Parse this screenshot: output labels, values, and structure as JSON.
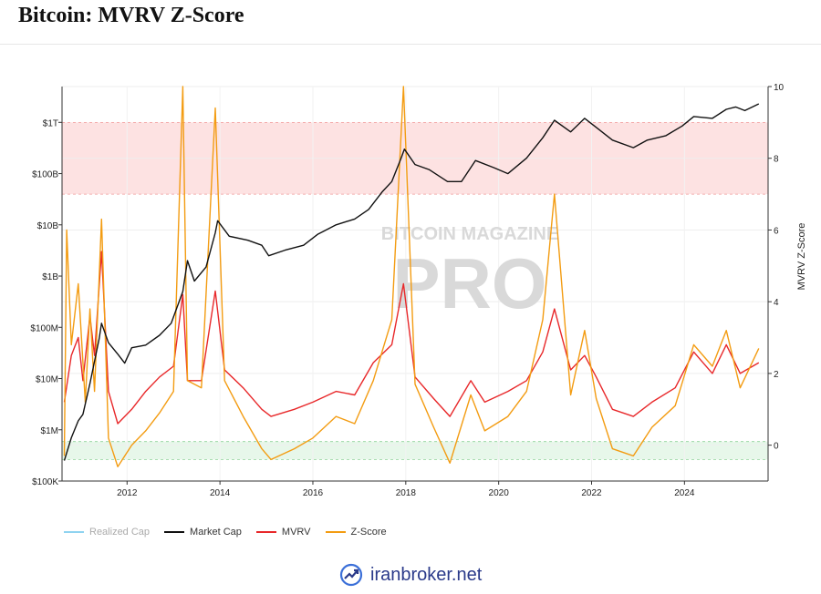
{
  "page": {
    "title": "Bitcoin: MVRV Z-Score"
  },
  "brand": {
    "text": "iranbroker.net",
    "icon": "trend-chart-icon"
  },
  "watermark": {
    "line1": "BITCOIN MAGAZINE",
    "line2": "PRO"
  },
  "colors": {
    "realized_cap": "#8fd3f0",
    "market_cap": "#111111",
    "mvrv": "#e8282a",
    "zscore": "#f39c12",
    "top_band": "#fde2e2",
    "bottom_band": "#e7f7ea"
  },
  "chart_data": {
    "type": "line",
    "title": "Bitcoin: MVRV Z-Score",
    "x_ticks": [
      "2012",
      "2014",
      "2016",
      "2018",
      "2020",
      "2022",
      "2024"
    ],
    "x_range": [
      2010.6,
      2025.8
    ],
    "y_left": {
      "scale": "log",
      "ticks": [
        "$100K",
        "$1M",
        "$10M",
        "$100M",
        "$1B",
        "$10B",
        "$100B",
        "$1T"
      ],
      "range": [
        100000,
        5000000000000
      ]
    },
    "y_right": {
      "label": "MVRV Z-Score",
      "ticks": [
        "0",
        "2",
        "4",
        "6",
        "8",
        "10"
      ],
      "range": [
        -1,
        10
      ]
    },
    "bands": [
      {
        "name": "top",
        "y_right_range": [
          7,
          9
        ]
      },
      {
        "name": "bottom",
        "y_right_range": [
          -0.4,
          0.1
        ]
      }
    ],
    "legend_position": "bottom-left",
    "series": [
      {
        "name": "Realized Cap",
        "axis": "left",
        "visible": false,
        "points": []
      },
      {
        "name": "Market Cap",
        "axis": "left",
        "points": [
          [
            2010.65,
            250000
          ],
          [
            2010.8,
            700000
          ],
          [
            2010.95,
            1500000
          ],
          [
            2011.05,
            2000000
          ],
          [
            2011.2,
            8000000
          ],
          [
            2011.4,
            60000000
          ],
          [
            2011.45,
            120000000
          ],
          [
            2011.6,
            50000000
          ],
          [
            2011.8,
            30000000
          ],
          [
            2011.95,
            20000000
          ],
          [
            2012.1,
            40000000
          ],
          [
            2012.4,
            45000000
          ],
          [
            2012.7,
            70000000
          ],
          [
            2012.95,
            120000000
          ],
          [
            2013.2,
            500000000
          ],
          [
            2013.3,
            2000000000
          ],
          [
            2013.45,
            800000000
          ],
          [
            2013.7,
            1500000000
          ],
          [
            2013.9,
            7000000000
          ],
          [
            2013.95,
            12000000000
          ],
          [
            2014.2,
            6000000000
          ],
          [
            2014.6,
            5000000000
          ],
          [
            2014.9,
            4000000000
          ],
          [
            2015.05,
            2500000000
          ],
          [
            2015.4,
            3200000000
          ],
          [
            2015.8,
            4000000000
          ],
          [
            2016.1,
            6500000000
          ],
          [
            2016.5,
            10000000000
          ],
          [
            2016.9,
            13000000000
          ],
          [
            2017.2,
            20000000000
          ],
          [
            2017.5,
            45000000000
          ],
          [
            2017.7,
            70000000000
          ],
          [
            2017.9,
            200000000000
          ],
          [
            2017.97,
            300000000000
          ],
          [
            2018.2,
            150000000000
          ],
          [
            2018.5,
            120000000000
          ],
          [
            2018.9,
            70000000000
          ],
          [
            2019.2,
            70000000000
          ],
          [
            2019.5,
            180000000000
          ],
          [
            2019.9,
            130000000000
          ],
          [
            2020.2,
            100000000000
          ],
          [
            2020.6,
            200000000000
          ],
          [
            2020.95,
            500000000000
          ],
          [
            2021.2,
            1100000000000
          ],
          [
            2021.55,
            650000000000
          ],
          [
            2021.85,
            1200000000000
          ],
          [
            2022.1,
            800000000000
          ],
          [
            2022.45,
            450000000000
          ],
          [
            2022.9,
            320000000000
          ],
          [
            2023.2,
            450000000000
          ],
          [
            2023.6,
            550000000000
          ],
          [
            2023.95,
            850000000000
          ],
          [
            2024.2,
            1300000000000
          ],
          [
            2024.6,
            1200000000000
          ],
          [
            2024.9,
            1800000000000
          ],
          [
            2025.1,
            2000000000000
          ],
          [
            2025.3,
            1700000000000
          ],
          [
            2025.6,
            2300000000000
          ]
        ]
      },
      {
        "name": "MVRV",
        "axis": "right",
        "points": [
          [
            2010.65,
            1.2
          ],
          [
            2010.8,
            2.5
          ],
          [
            2010.95,
            3.0
          ],
          [
            2011.05,
            1.8
          ],
          [
            2011.2,
            3.6
          ],
          [
            2011.3,
            2.5
          ],
          [
            2011.45,
            5.4
          ],
          [
            2011.6,
            1.5
          ],
          [
            2011.8,
            0.6
          ],
          [
            2012.1,
            1.0
          ],
          [
            2012.4,
            1.5
          ],
          [
            2012.7,
            1.9
          ],
          [
            2013.0,
            2.2
          ],
          [
            2013.2,
            4.2
          ],
          [
            2013.3,
            1.8
          ],
          [
            2013.6,
            1.8
          ],
          [
            2013.9,
            4.3
          ],
          [
            2014.1,
            2.1
          ],
          [
            2014.5,
            1.6
          ],
          [
            2014.9,
            1.0
          ],
          [
            2015.1,
            0.8
          ],
          [
            2015.6,
            1.0
          ],
          [
            2016.0,
            1.2
          ],
          [
            2016.5,
            1.5
          ],
          [
            2016.9,
            1.4
          ],
          [
            2017.3,
            2.3
          ],
          [
            2017.7,
            2.8
          ],
          [
            2017.95,
            4.5
          ],
          [
            2018.2,
            1.9
          ],
          [
            2018.6,
            1.3
          ],
          [
            2018.95,
            0.8
          ],
          [
            2019.4,
            1.8
          ],
          [
            2019.7,
            1.2
          ],
          [
            2020.2,
            1.5
          ],
          [
            2020.6,
            1.8
          ],
          [
            2020.95,
            2.6
          ],
          [
            2021.2,
            3.8
          ],
          [
            2021.55,
            2.1
          ],
          [
            2021.85,
            2.5
          ],
          [
            2022.1,
            1.9
          ],
          [
            2022.45,
            1.0
          ],
          [
            2022.9,
            0.8
          ],
          [
            2023.3,
            1.2
          ],
          [
            2023.8,
            1.6
          ],
          [
            2024.2,
            2.6
          ],
          [
            2024.6,
            2.0
          ],
          [
            2024.9,
            2.8
          ],
          [
            2025.2,
            2.0
          ],
          [
            2025.6,
            2.3
          ]
        ]
      },
      {
        "name": "Z-Score",
        "axis": "right",
        "points": [
          [
            2010.65,
            -0.3
          ],
          [
            2010.7,
            6.0
          ],
          [
            2010.8,
            2.8
          ],
          [
            2010.95,
            4.5
          ],
          [
            2011.1,
            1.2
          ],
          [
            2011.2,
            3.8
          ],
          [
            2011.3,
            1.5
          ],
          [
            2011.45,
            6.3
          ],
          [
            2011.6,
            0.2
          ],
          [
            2011.8,
            -0.6
          ],
          [
            2012.1,
            0.0
          ],
          [
            2012.4,
            0.4
          ],
          [
            2012.7,
            0.9
          ],
          [
            2013.0,
            1.5
          ],
          [
            2013.2,
            10.0
          ],
          [
            2013.3,
            1.8
          ],
          [
            2013.6,
            1.6
          ],
          [
            2013.9,
            9.4
          ],
          [
            2014.1,
            1.8
          ],
          [
            2014.5,
            0.8
          ],
          [
            2014.9,
            -0.1
          ],
          [
            2015.1,
            -0.4
          ],
          [
            2015.6,
            -0.1
          ],
          [
            2016.0,
            0.2
          ],
          [
            2016.5,
            0.8
          ],
          [
            2016.9,
            0.6
          ],
          [
            2017.3,
            1.8
          ],
          [
            2017.7,
            3.5
          ],
          [
            2017.95,
            10.0
          ],
          [
            2018.2,
            1.7
          ],
          [
            2018.6,
            0.5
          ],
          [
            2018.95,
            -0.5
          ],
          [
            2019.4,
            1.4
          ],
          [
            2019.7,
            0.4
          ],
          [
            2020.2,
            0.8
          ],
          [
            2020.6,
            1.5
          ],
          [
            2020.95,
            3.5
          ],
          [
            2021.2,
            7.0
          ],
          [
            2021.55,
            1.4
          ],
          [
            2021.85,
            3.2
          ],
          [
            2022.1,
            1.3
          ],
          [
            2022.45,
            -0.1
          ],
          [
            2022.9,
            -0.3
          ],
          [
            2023.3,
            0.5
          ],
          [
            2023.8,
            1.1
          ],
          [
            2024.2,
            2.8
          ],
          [
            2024.6,
            2.2
          ],
          [
            2024.9,
            3.2
          ],
          [
            2025.2,
            1.6
          ],
          [
            2025.6,
            2.7
          ]
        ]
      }
    ]
  },
  "legend": [
    {
      "label": "Realized Cap",
      "color": "#8fd3f0",
      "muted": true
    },
    {
      "label": "Market Cap",
      "color": "#111111",
      "muted": false
    },
    {
      "label": "MVRV",
      "color": "#e8282a",
      "muted": false
    },
    {
      "label": "Z-Score",
      "color": "#f39c12",
      "muted": false
    }
  ]
}
